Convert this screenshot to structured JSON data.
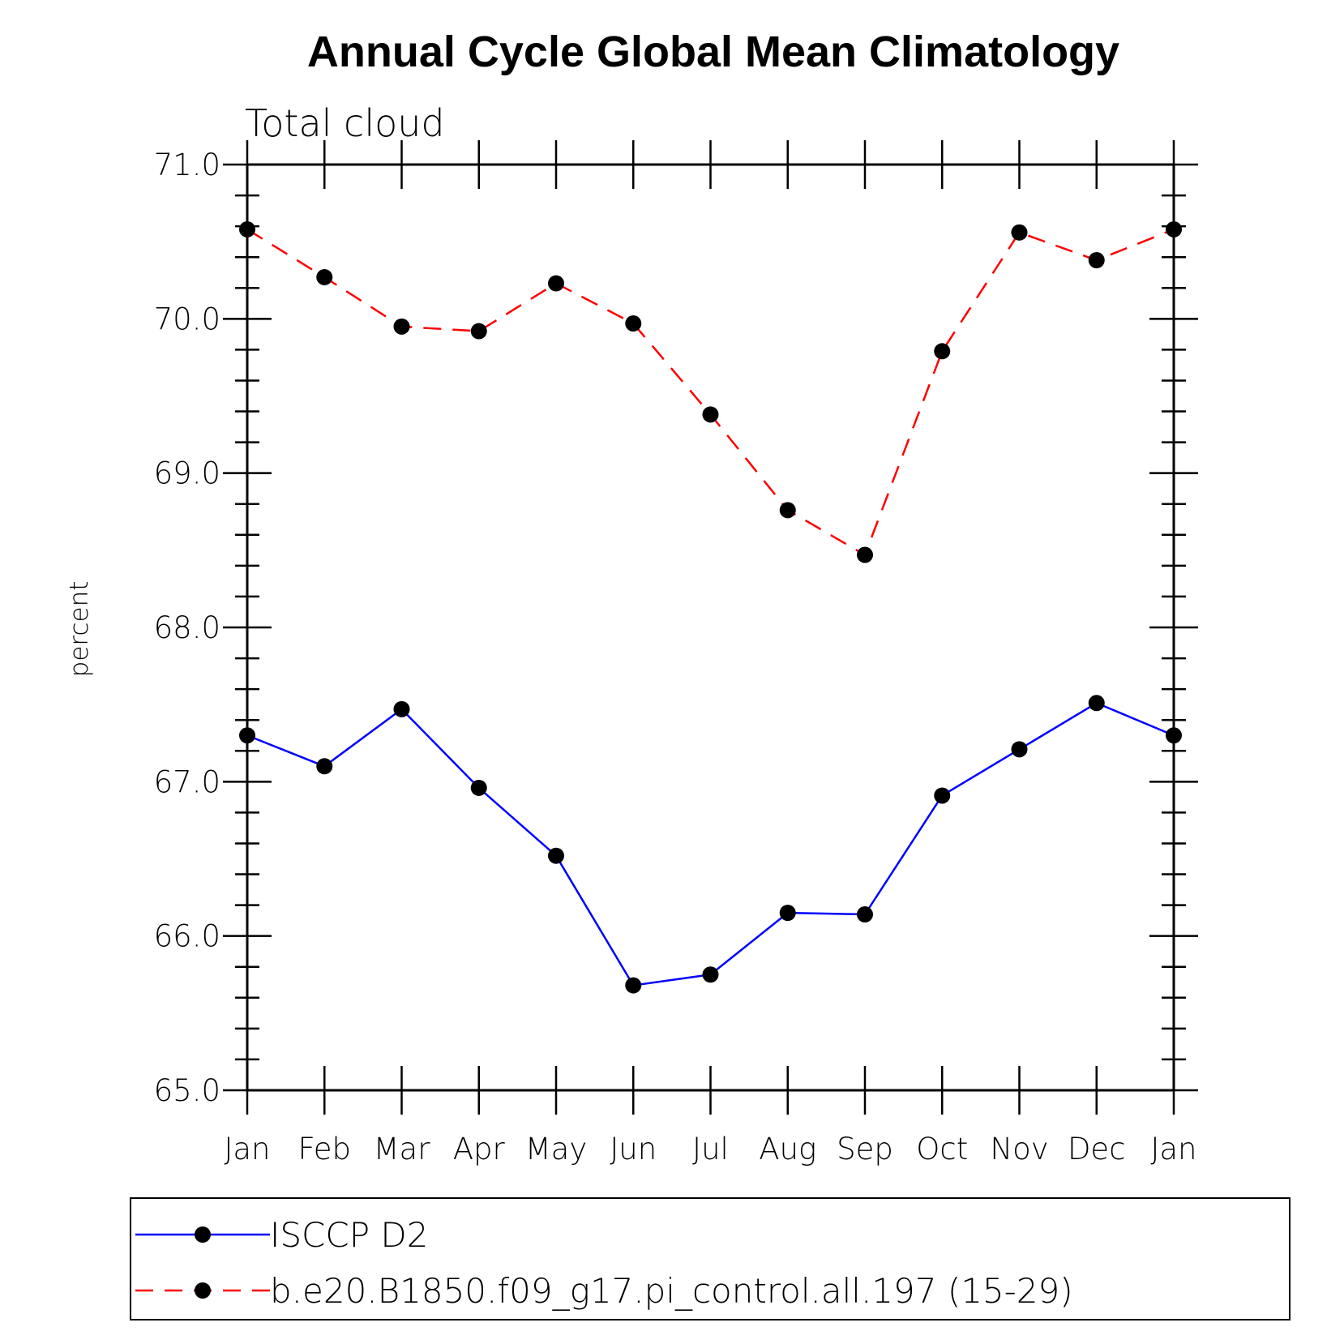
{
  "chart_data": {
    "type": "line",
    "title": "Annual Cycle Global Mean Climatology",
    "subtitle": "Total cloud",
    "ylabel": "percent",
    "xlabel": "",
    "ylim": [
      65.0,
      71.0
    ],
    "yticks": [
      "65.0",
      "66.0",
      "67.0",
      "68.0",
      "69.0",
      "70.0",
      "71.0"
    ],
    "categories": [
      "Jan",
      "Feb",
      "Mar",
      "Apr",
      "May",
      "Jun",
      "Jul",
      "Aug",
      "Sep",
      "Oct",
      "Nov",
      "Dec",
      "Jan"
    ],
    "grid": false,
    "legend_position": "bottom",
    "series": [
      {
        "name": "ISCCP D2",
        "color": "#0000ff",
        "dash": "solid",
        "marker": "filled-circle",
        "values": [
          67.3,
          67.1,
          67.47,
          66.96,
          66.52,
          65.68,
          65.75,
          66.15,
          66.14,
          66.91,
          67.21,
          67.51,
          67.3
        ]
      },
      {
        "name": "b.e20.B1850.f09_g17.pi_control.all.197 (15-29)",
        "color": "#ff0000",
        "dash": "dashed",
        "marker": "filled-circle",
        "values": [
          70.58,
          70.27,
          69.95,
          69.92,
          70.23,
          69.97,
          69.38,
          68.76,
          68.47,
          69.79,
          70.56,
          70.38,
          70.58
        ]
      }
    ]
  }
}
